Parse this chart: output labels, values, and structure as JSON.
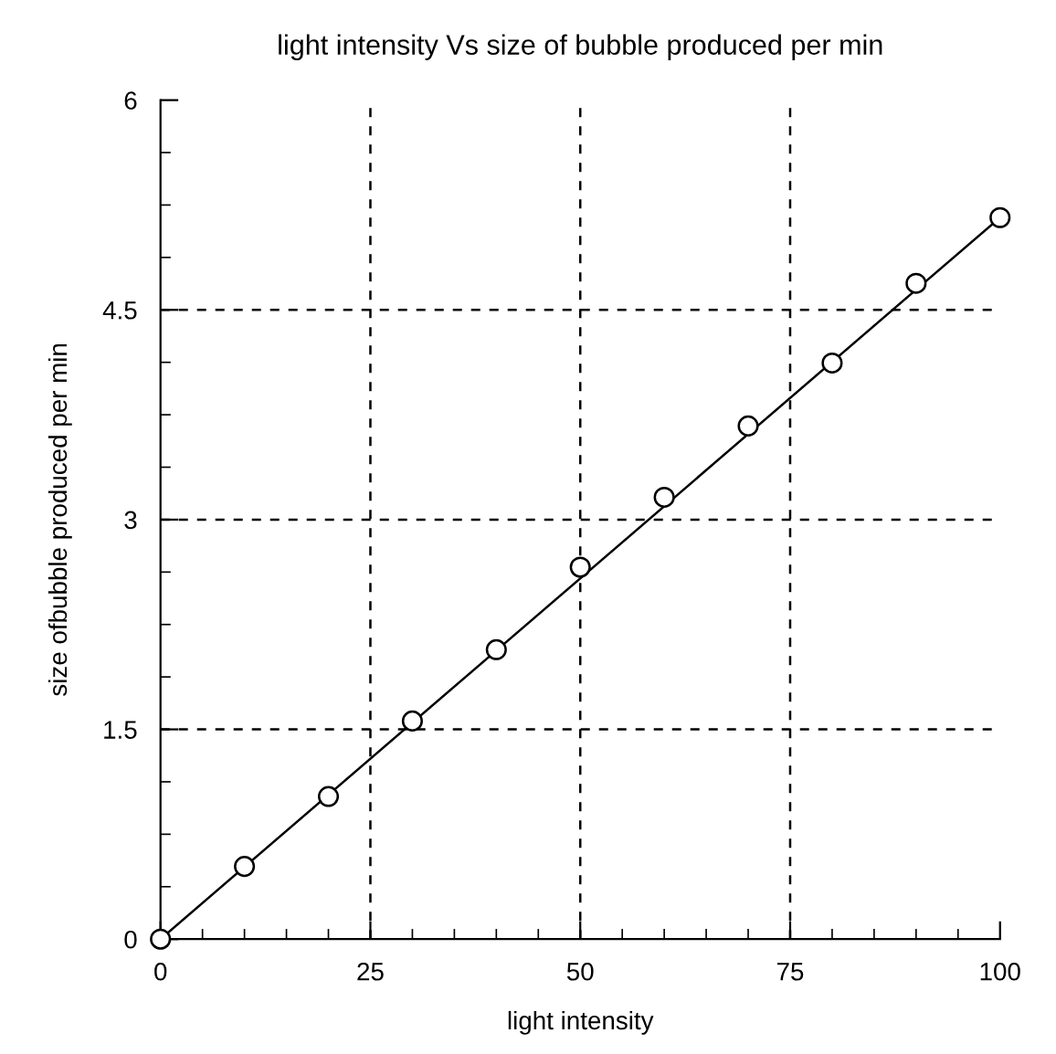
{
  "chart_data": {
    "type": "scatter",
    "title": "light intensity Vs size of bubble produced per min",
    "xlabel": "light intensity",
    "ylabel": "size ofbubble produced per min",
    "xlim": [
      0,
      100
    ],
    "xticks": [
      0,
      25,
      50,
      75,
      100
    ],
    "ylim": [
      0,
      6
    ],
    "yticks": [
      0,
      1.5,
      3,
      4.5,
      6
    ],
    "grid": true,
    "series": [
      {
        "color": "#000000",
        "marker": "circle",
        "x": [
          0,
          10,
          20,
          30,
          40,
          50,
          60,
          70,
          80,
          90,
          100
        ],
        "values": [
          0,
          0.52,
          1.02,
          1.56,
          2.07,
          2.66,
          3.16,
          3.67,
          4.12,
          4.69,
          5.16
        ]
      },
      {
        "type": "line",
        "color": "#000000",
        "x": [
          0,
          100
        ],
        "values": [
          0,
          5.16
        ],
        "line_style": "solid"
      }
    ]
  }
}
